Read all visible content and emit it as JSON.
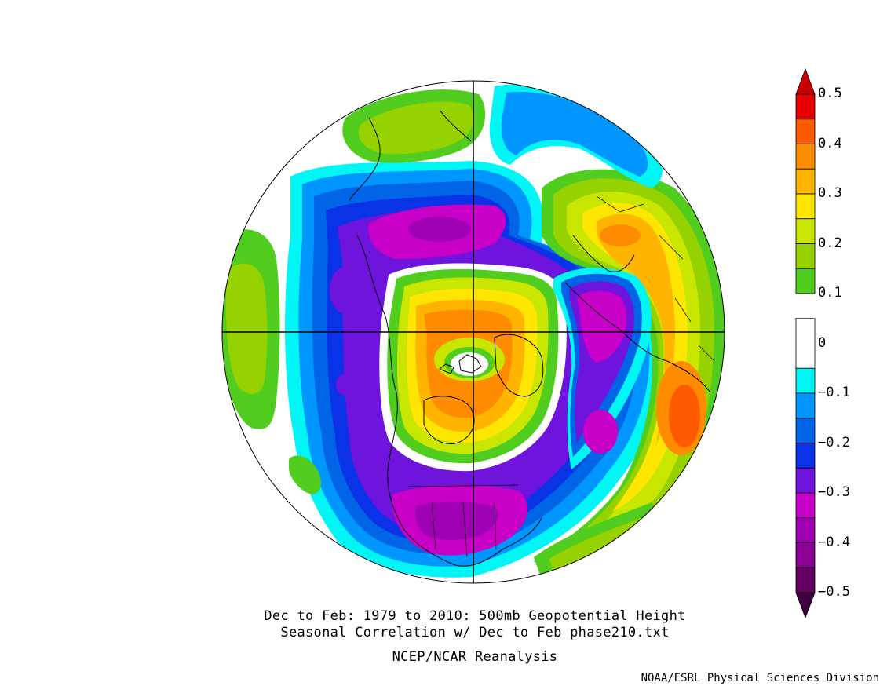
{
  "caption": {
    "line1": "Dec to Feb: 1979 to 2010: 500mb Geopotential Height",
    "line2": "Seasonal Correlation w/ Dec to Feb phase210.txt",
    "line3": "NCEP/NCAR Reanalysis"
  },
  "credit": "NOAA/ESRL Physical Sciences Division",
  "colorbar": {
    "labels": [
      "0.5",
      "0.4",
      "0.3",
      "0.2",
      "0.1",
      "0",
      "−0.1",
      "−0.2",
      "−0.3",
      "−0.4",
      "−0.5"
    ],
    "bins": [
      {
        "range": [
          0.45,
          0.5
        ],
        "color": "#e60000"
      },
      {
        "range": [
          0.4,
          0.45
        ],
        "color": "#ff5a00"
      },
      {
        "range": [
          0.35,
          0.4
        ],
        "color": "#ff8c00"
      },
      {
        "range": [
          0.3,
          0.35
        ],
        "color": "#ffb400"
      },
      {
        "range": [
          0.25,
          0.3
        ],
        "color": "#ffe600"
      },
      {
        "range": [
          0.2,
          0.25
        ],
        "color": "#c8e600"
      },
      {
        "range": [
          0.15,
          0.2
        ],
        "color": "#96d200"
      },
      {
        "range": [
          0.1,
          0.15
        ],
        "color": "#50cd1e"
      },
      {
        "range": [
          -0.05,
          0.05
        ],
        "color": "#ffffff"
      },
      {
        "range": [
          -0.1,
          -0.05
        ],
        "color": "#00f5f5"
      },
      {
        "range": [
          -0.15,
          -0.1
        ],
        "color": "#0096ff"
      },
      {
        "range": [
          -0.2,
          -0.15
        ],
        "color": "#0064e6"
      },
      {
        "range": [
          -0.25,
          -0.2
        ],
        "color": "#0a32e6"
      },
      {
        "range": [
          -0.3,
          -0.25
        ],
        "color": "#6e14dc"
      },
      {
        "range": [
          -0.35,
          -0.3
        ],
        "color": "#c800c8"
      },
      {
        "range": [
          -0.4,
          -0.35
        ],
        "color": "#a000b4"
      },
      {
        "range": [
          -0.45,
          -0.4
        ],
        "color": "#8c0096"
      },
      {
        "range": [
          -0.5,
          -0.45
        ],
        "color": "#640064"
      }
    ],
    "over_color": "#c80000",
    "under_color": "#3c003c"
  },
  "map": {
    "projection": "north-polar-stereographic",
    "field": "correlation",
    "regions": [
      {
        "name": "central-us-minimum",
        "value": -0.4,
        "color": "#a000b4"
      },
      {
        "name": "north-atlantic-band",
        "value": -0.35,
        "color": "#c800c8"
      },
      {
        "name": "north-pacific-minimum",
        "value": -0.3,
        "color": "#6e14dc"
      },
      {
        "name": "north-atlantic-maximum",
        "value": -0.3,
        "color": "#c800c8"
      },
      {
        "name": "arctic-canada-maximum",
        "value": 0.35,
        "color": "#ff8c00"
      },
      {
        "name": "europe-maximum",
        "value": 0.3,
        "color": "#ffb400"
      },
      {
        "name": "middle-east-maximum",
        "value": 0.4,
        "color": "#ff5a00"
      },
      {
        "name": "west-pacific-edge",
        "value": 0.2,
        "color": "#96d200"
      }
    ]
  }
}
